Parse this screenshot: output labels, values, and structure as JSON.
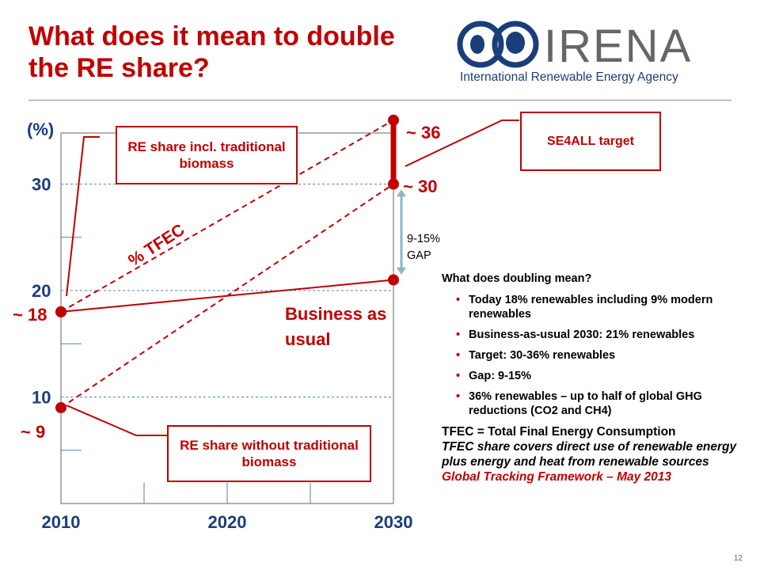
{
  "slide": {
    "title": "What does it mean to double the RE share?",
    "page_number": "12"
  },
  "logo": {
    "name": "IRENA",
    "tagline": "International Renewable Energy Agency",
    "colors": {
      "globe": "#1a3e7a",
      "text": "#666666",
      "tagline": "#1a3e7a"
    }
  },
  "chart_data": {
    "type": "line",
    "ylabel": "(%)",
    "yticks": [
      "10",
      "20",
      "30"
    ],
    "xticks": [
      "2010",
      "2020",
      "2030"
    ],
    "ylim": [
      0,
      36
    ],
    "xlim": [
      2010,
      2030
    ],
    "series": [
      {
        "name": "RE share incl. traditional biomass",
        "style": "dashed",
        "x": [
          2010,
          2030
        ],
        "values": [
          18,
          36
        ]
      },
      {
        "name": "RE share without traditional biomass",
        "style": "dashed",
        "x": [
          2010,
          2030
        ],
        "values": [
          9,
          30
        ]
      },
      {
        "name": "Business as usual",
        "style": "solid",
        "x": [
          2010,
          2030
        ],
        "values": [
          18,
          21
        ]
      }
    ],
    "point_labels": [
      "~ 18",
      "~ 9",
      "~ 36",
      "~ 30"
    ],
    "annotations": {
      "tfec": "% TFEC",
      "bau": "Business as usual",
      "gap": "9-15% GAP",
      "target": "SE4ALL target",
      "incl_box": "RE share incl. traditional biomass",
      "without_box": "RE share without traditional biomass"
    },
    "colors": {
      "series": "#c00000",
      "gap_arrow": "#8cb4c8",
      "grid": "#4f81bd"
    }
  },
  "notes": {
    "heading": "What does doubling mean?",
    "bullets": [
      "Today 18% renewables including 9% modern renewables",
      "Business-as-usual 2030: 21% renewables",
      "Target: 30-36% renewables",
      "Gap: 9-15%",
      "36% renewables – up to half of global GHG reductions (CO2 and CH4)"
    ],
    "definition": "TFEC = Total Final Energy Consumption",
    "definition_detail": "TFEC share covers direct use of renewable energy plus energy and heat from renewable sources",
    "source": "Global Tracking Framework – May 2013"
  }
}
